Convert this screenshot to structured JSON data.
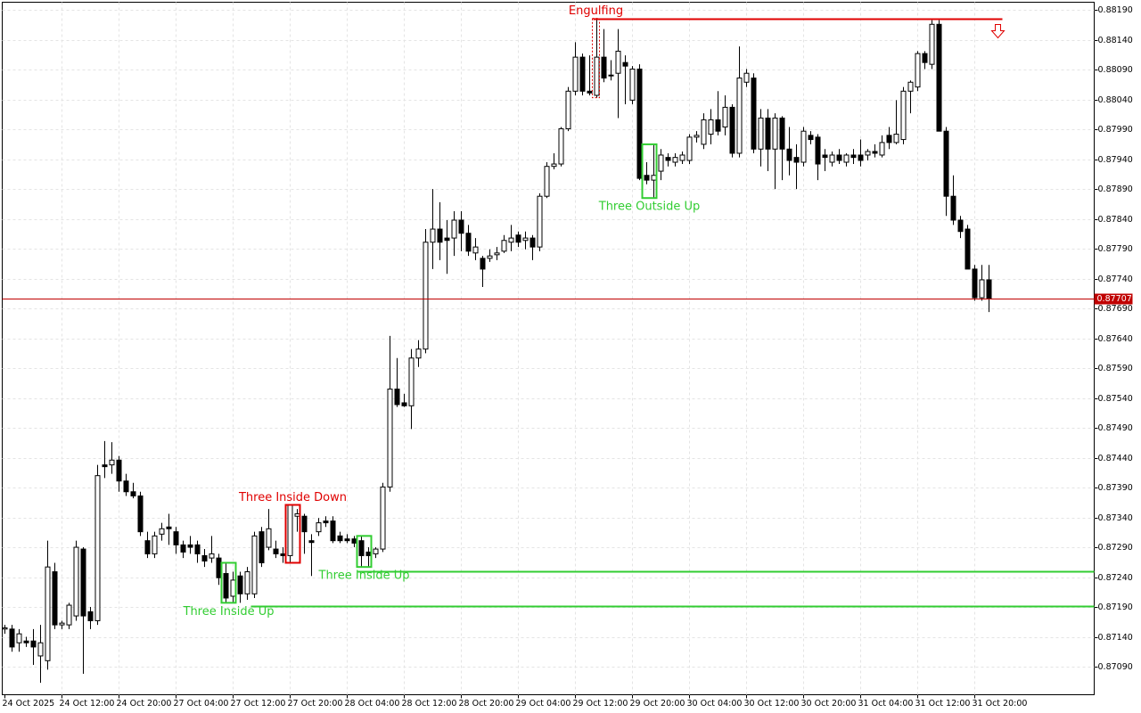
{
  "chart_data": {
    "type": "candlestick",
    "categories": [
      "24 Oct 2025",
      null,
      null,
      null,
      null,
      null,
      null,
      null,
      "24 Oct 12:00",
      null,
      null,
      null,
      null,
      null,
      null,
      null,
      "24 Oct 20:00",
      null,
      null,
      null,
      null,
      null,
      null,
      null,
      "27 Oct 04:00",
      null,
      null,
      null,
      null,
      null,
      null,
      null,
      "27 Oct 12:00",
      null,
      null,
      null,
      null,
      null,
      null,
      null,
      "27 Oct 20:00",
      null,
      null,
      null,
      null,
      null,
      null,
      null,
      "28 Oct 04:00",
      null,
      null,
      null,
      null,
      null,
      null,
      null,
      "28 Oct 12:00",
      null,
      null,
      null,
      null,
      null,
      null,
      null,
      "28 Oct 20:00",
      null,
      null,
      null,
      null,
      null,
      null,
      null,
      "29 Oct 04:00",
      null,
      null,
      null,
      null,
      null,
      null,
      null,
      "29 Oct 12:00",
      null,
      null,
      null,
      null,
      null,
      null,
      null,
      "29 Oct 20:00",
      null,
      null,
      null,
      null,
      null,
      null,
      null,
      "30 Oct 04:00",
      null,
      null,
      null,
      null,
      null,
      null,
      null,
      "30 Oct 12:00",
      null,
      null,
      null,
      null,
      null,
      null,
      null,
      "30 Oct 20:00",
      null,
      null,
      null,
      null,
      null,
      null,
      null,
      "31 Oct 04:00",
      null,
      null,
      null,
      null,
      null,
      null,
      null,
      "31 Oct 12:00",
      null,
      null,
      null,
      null,
      null,
      null,
      null,
      "31 Oct 20:00",
      null,
      null
    ],
    "open": [
      0.87153,
      0.87153,
      0.8713,
      0.87133,
      0.87133,
      0.87108,
      0.871,
      0.87249,
      0.8716,
      0.8716,
      0.87175,
      0.87287,
      0.87182,
      0.87167,
      0.87428,
      0.87428,
      0.87436,
      0.87401,
      0.87383,
      0.87376,
      0.87301,
      0.87279,
      0.87312,
      0.87324,
      0.87316,
      0.87294,
      0.87294,
      0.87294,
      0.87276,
      0.87272,
      0.87272,
      0.87246,
      0.87208,
      0.87242,
      0.87212,
      0.87212,
      0.87316,
      0.8729,
      0.87287,
      0.87279,
      0.87276,
      0.87342,
      0.87342,
      0.87301,
      0.87316,
      0.87334,
      0.87334,
      0.87309,
      0.87304,
      0.87304,
      0.87301,
      0.87282,
      0.87279,
      0.87287,
      0.87391,
      0.87555,
      0.87532,
      0.87527,
      0.87607,
      0.87622,
      0.87801,
      0.87823,
      0.87808,
      0.87808,
      0.87838,
      0.87816,
      0.87783,
      0.87774,
      0.87774,
      0.8778,
      0.87786,
      0.87801,
      0.87813,
      0.87804,
      0.87808,
      0.87793,
      0.87878,
      0.87928,
      0.87932,
      0.87991,
      0.88054,
      0.88111,
      0.88054,
      0.88047,
      0.88111,
      0.88081,
      0.88084,
      0.88102,
      0.88039,
      0.88091,
      0.87913,
      0.87905,
      0.8792,
      0.87943,
      0.87935,
      0.87938,
      0.87938,
      0.87977,
      0.87965,
      0.87982,
      0.88006,
      0.87994,
      0.88027,
      0.8795,
      0.88069,
      0.88076,
      0.87957,
      0.88009,
      0.87957,
      0.88009,
      0.87957,
      0.87943,
      0.87935,
      0.8798,
      0.87977,
      0.87947,
      0.87935,
      0.87947,
      0.87935,
      0.87947,
      0.87947,
      0.87947,
      0.87953,
      0.87947,
      0.8798,
      0.87968,
      0.87973,
      0.88054,
      0.88061,
      0.88117,
      0.88099,
      0.88166,
      0.87987,
      0.87878,
      0.87838,
      0.87823,
      0.87756,
      0.87708,
      0.87738
    ],
    "high": [
      0.8716,
      0.8716,
      0.87153,
      0.8714,
      0.87153,
      0.8716,
      0.87301,
      0.87264,
      0.87167,
      0.87197,
      0.87301,
      0.8729,
      0.8719,
      0.87428,
      0.87468,
      0.87466,
      0.87443,
      0.87413,
      0.87398,
      0.87383,
      0.87316,
      0.87316,
      0.87331,
      0.87346,
      0.87324,
      0.87301,
      0.87309,
      0.87301,
      0.87287,
      0.87309,
      0.87279,
      0.87264,
      0.87249,
      0.87249,
      0.87257,
      0.87316,
      0.87324,
      0.87354,
      0.87301,
      0.8729,
      0.87361,
      0.87354,
      0.87346,
      0.87312,
      0.87339,
      0.87342,
      0.87342,
      0.87316,
      0.87312,
      0.87309,
      0.87309,
      0.8729,
      0.8729,
      0.87398,
      0.87644,
      0.87607,
      0.87547,
      0.87622,
      0.87637,
      0.87823,
      0.8789,
      0.87868,
      0.87838,
      0.87853,
      0.87853,
      0.8783,
      0.87808,
      0.87778,
      0.87789,
      0.87793,
      0.87813,
      0.8783,
      0.87819,
      0.87819,
      0.87813,
      0.87883,
      0.87935,
      0.8795,
      0.87994,
      0.88061,
      0.88136,
      0.88117,
      0.88114,
      0.88176,
      0.88158,
      0.88106,
      0.88158,
      0.88114,
      0.88096,
      0.88099,
      0.87935,
      0.87965,
      0.87957,
      0.8795,
      0.8795,
      0.87953,
      0.87982,
      0.87987,
      0.88017,
      0.88024,
      0.88054,
      0.88047,
      0.88032,
      0.88129,
      0.88091,
      0.88084,
      0.88024,
      0.88024,
      0.88017,
      0.88012,
      0.87994,
      0.87965,
      0.87994,
      0.87987,
      0.87982,
      0.87957,
      0.87953,
      0.87957,
      0.8795,
      0.87957,
      0.87973,
      0.87957,
      0.87965,
      0.8798,
      0.87994,
      0.88039,
      0.88061,
      0.88072,
      0.88121,
      0.88121,
      0.88173,
      0.88173,
      0.87994,
      0.87913,
      0.87845,
      0.8783,
      0.87763,
      0.87763,
      0.87763
    ],
    "low": [
      0.87145,
      0.87115,
      0.87115,
      0.87123,
      0.87093,
      0.87063,
      0.87085,
      0.87153,
      0.87153,
      0.87153,
      0.87167,
      0.87078,
      0.87153,
      0.8716,
      0.87406,
      0.87413,
      0.87383,
      0.87376,
      0.87372,
      0.87309,
      0.87272,
      0.87272,
      0.87301,
      0.87294,
      0.87279,
      0.87272,
      0.87279,
      0.87264,
      0.87257,
      0.87264,
      0.87227,
      0.87197,
      0.87197,
      0.87197,
      0.87202,
      0.87205,
      0.87257,
      0.87285,
      0.87272,
      0.87264,
      0.87264,
      0.87316,
      0.87279,
      0.87242,
      0.87309,
      0.87324,
      0.87297,
      0.87297,
      0.87297,
      0.8729,
      0.87257,
      0.87257,
      0.87272,
      0.87282,
      0.87383,
      0.87525,
      0.87525,
      0.87488,
      0.87592,
      0.87615,
      0.87756,
      0.87771,
      0.87748,
      0.87778,
      0.87786,
      0.87778,
      0.87771,
      0.87726,
      0.87768,
      0.87771,
      0.87783,
      0.87786,
      0.87793,
      0.87789,
      0.87771,
      0.87786,
      0.87875,
      0.87923,
      0.87928,
      0.87987,
      0.88047,
      0.88047,
      0.88047,
      0.88043,
      0.88069,
      0.88072,
      0.88009,
      0.88032,
      0.88032,
      0.87905,
      0.87898,
      0.87875,
      0.87905,
      0.87928,
      0.87928,
      0.87932,
      0.87932,
      0.87968,
      0.87957,
      0.87965,
      0.8798,
      0.8798,
      0.87943,
      0.87943,
      0.88061,
      0.8795,
      0.87928,
      0.8792,
      0.8789,
      0.87905,
      0.87913,
      0.8789,
      0.87928,
      0.87965,
      0.87905,
      0.8792,
      0.87928,
      0.87932,
      0.87928,
      0.87932,
      0.87928,
      0.87938,
      0.87943,
      0.87943,
      0.87957,
      0.87965,
      0.87965,
      0.88017,
      0.88054,
      0.88091,
      0.88091,
      0.87987,
      0.87845,
      0.8783,
      0.87808,
      0.87756,
      0.87703,
      0.87703,
      0.87684
    ],
    "close": [
      0.87155,
      0.87123,
      0.87145,
      0.8713,
      0.87123,
      0.8713,
      0.87257,
      0.8716,
      0.87163,
      0.87193,
      0.8729,
      0.87175,
      0.87167,
      0.8741,
      0.87425,
      0.87436,
      0.87401,
      0.87383,
      0.87376,
      0.87316,
      0.87279,
      0.87309,
      0.87321,
      0.87321,
      0.87294,
      0.87282,
      0.8729,
      0.87279,
      0.87267,
      0.87279,
      0.87239,
      0.87205,
      0.87235,
      0.87212,
      0.87249,
      0.87309,
      0.87264,
      0.87321,
      0.87279,
      0.87276,
      0.87361,
      0.87346,
      0.87316,
      0.87298,
      0.87331,
      0.87331,
      0.87301,
      0.87301,
      0.87301,
      0.87297,
      0.87276,
      0.87276,
      0.87287,
      0.87391,
      0.87555,
      0.87529,
      0.87527,
      0.87607,
      0.87622,
      0.87801,
      0.87823,
      0.87801,
      0.87804,
      0.87838,
      0.87816,
      0.87786,
      0.87793,
      0.87756,
      0.87778,
      0.87783,
      0.87804,
      0.87808,
      0.87801,
      0.87808,
      0.87793,
      0.87878,
      0.87928,
      0.87932,
      0.87991,
      0.88054,
      0.88111,
      0.88054,
      0.88051,
      0.88111,
      0.88076,
      0.88081,
      0.88121,
      0.88096,
      0.88091,
      0.87908,
      0.87905,
      0.87913,
      0.87947,
      0.87938,
      0.87943,
      0.87947,
      0.87977,
      0.8798,
      0.88006,
      0.88006,
      0.87987,
      0.88027,
      0.8795,
      0.88076,
      0.88084,
      0.87957,
      0.88009,
      0.87957,
      0.88009,
      0.87957,
      0.87938,
      0.87935,
      0.87987,
      0.87973,
      0.87932,
      0.87943,
      0.87947,
      0.87938,
      0.87947,
      0.87943,
      0.87938,
      0.87953,
      0.8795,
      0.87968,
      0.87968,
      0.87982,
      0.88054,
      0.88069,
      0.88117,
      0.88102,
      0.88166,
      0.87987,
      0.87878,
      0.87838,
      0.87819,
      0.87756,
      0.87708,
      0.87738,
      0.87707
    ],
    "up_color": "#ffffff",
    "down_color": "#000000",
    "wick_color": "#000000",
    "ylim": [
      0.87043,
      0.88203
    ],
    "yticks": [
      {
        "value": 0.8819,
        "label": "0.88190"
      },
      {
        "value": 0.8814,
        "label": "0.88140"
      },
      {
        "value": 0.8809,
        "label": "0.88090"
      },
      {
        "value": 0.8804,
        "label": "0.88040"
      },
      {
        "value": 0.8799,
        "label": "0.87990"
      },
      {
        "value": 0.8794,
        "label": "0.87940"
      },
      {
        "value": 0.8789,
        "label": "0.87890"
      },
      {
        "value": 0.8784,
        "label": "0.87840"
      },
      {
        "value": 0.8779,
        "label": "0.87790"
      },
      {
        "value": 0.8774,
        "label": "0.87740"
      },
      {
        "value": 0.8769,
        "label": "0.87690"
      },
      {
        "value": 0.8764,
        "label": "0.87640"
      },
      {
        "value": 0.8759,
        "label": "0.87590"
      },
      {
        "value": 0.8754,
        "label": "0.87540"
      },
      {
        "value": 0.8749,
        "label": "0.87490"
      },
      {
        "value": 0.8744,
        "label": "0.87440"
      },
      {
        "value": 0.8739,
        "label": "0.87390"
      },
      {
        "value": 0.8734,
        "label": "0.87340"
      },
      {
        "value": 0.8729,
        "label": "0.87290"
      },
      {
        "value": 0.8724,
        "label": "0.87240"
      },
      {
        "value": 0.8719,
        "label": "0.87190"
      },
      {
        "value": 0.8714,
        "label": "0.87140"
      },
      {
        "value": 0.8709,
        "label": "0.87090"
      }
    ],
    "grid": true,
    "current_price": {
      "value": 0.87707,
      "label": "0.87707",
      "color": "#c00000"
    },
    "levels": [
      {
        "value": 0.88176,
        "color": "#e00000",
        "from": 83,
        "to": 140
      },
      {
        "value": 0.8725,
        "color": "#32cd32",
        "from": 50
      },
      {
        "value": 0.87192,
        "color": "#32cd32",
        "from": 35
      }
    ],
    "annotations": [
      {
        "text": "Engulfing",
        "color": "#e00000",
        "from": 83,
        "to": 83,
        "placement": "above"
      },
      {
        "text": "Three Inside Down",
        "color": "#e00000",
        "from": 40,
        "to": 41,
        "placement": "above"
      },
      {
        "text": "Three Inside Up",
        "color": "#32cd32",
        "from": 31,
        "to": 32,
        "placement": "below"
      },
      {
        "text": "Three Inside Up",
        "color": "#32cd32",
        "from": 50,
        "to": 51,
        "placement": "below"
      },
      {
        "text": "Three Outside Up",
        "color": "#32cd32",
        "from": 90,
        "to": 91,
        "placement": "below"
      }
    ]
  }
}
